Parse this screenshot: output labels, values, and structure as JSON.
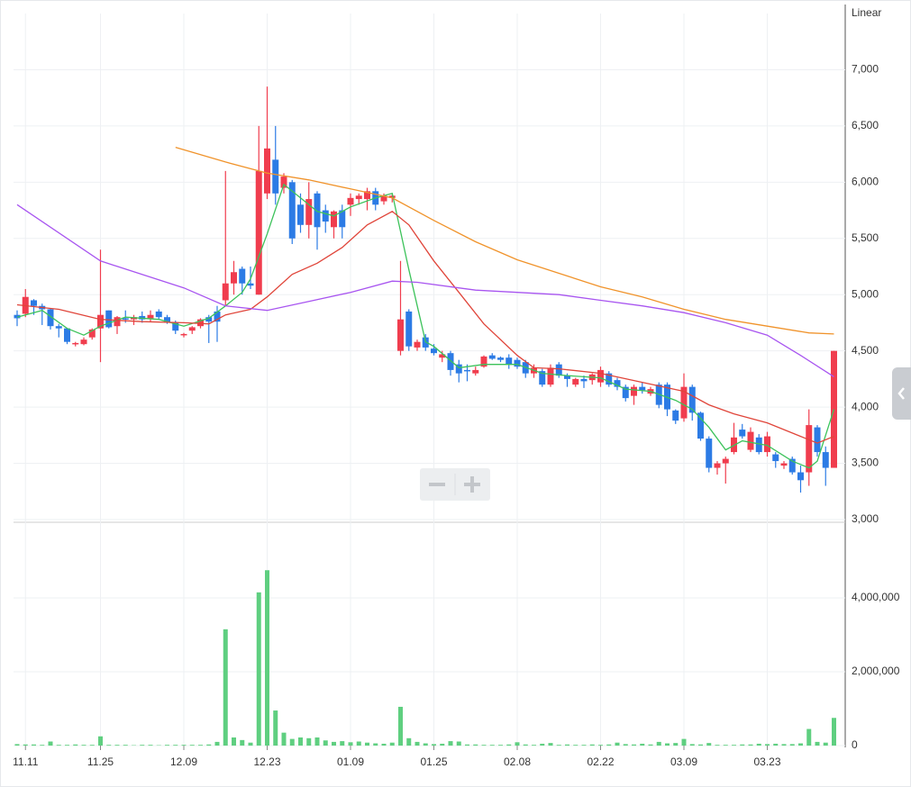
{
  "chart_data": {
    "type": "candlestick",
    "scale_label": "Linear",
    "categories": [
      null,
      "11.11",
      null,
      null,
      null,
      null,
      null,
      null,
      null,
      null,
      "11.25",
      null,
      null,
      null,
      null,
      null,
      null,
      null,
      null,
      null,
      "12.09",
      null,
      null,
      null,
      null,
      null,
      null,
      null,
      null,
      null,
      "12.23",
      null,
      null,
      null,
      null,
      null,
      null,
      null,
      null,
      null,
      "01.09",
      null,
      null,
      null,
      null,
      null,
      null,
      null,
      null,
      null,
      "01.25",
      null,
      null,
      null,
      null,
      null,
      null,
      null,
      null,
      null,
      "02.08",
      null,
      null,
      null,
      null,
      null,
      null,
      null,
      null,
      null,
      "02.22",
      null,
      null,
      null,
      null,
      null,
      null,
      null,
      null,
      null,
      "03.09",
      null,
      null,
      null,
      null,
      null,
      null,
      null,
      null,
      null,
      "03.23",
      null,
      null,
      null,
      null,
      null,
      null,
      null,
      null
    ],
    "open": [
      4820,
      4830,
      4950,
      4900,
      4870,
      4720,
      4700,
      4560,
      4560,
      4620,
      4700,
      4860,
      4720,
      4790,
      4780,
      4810,
      4790,
      4850,
      4800,
      4750,
      4640,
      4680,
      4720,
      4800,
      4850,
      4950,
      5100,
      5230,
      5100,
      5000,
      5900,
      6200,
      5950,
      6000,
      5800,
      5620,
      5900,
      5750,
      5600,
      5750,
      5800,
      5850,
      5850,
      5920,
      5830,
      5860,
      4500,
      4850,
      4530,
      4620,
      4520,
      4440,
      4480,
      4380,
      4330,
      4300,
      4360,
      4460,
      4440,
      4440,
      4420,
      4400,
      4300,
      4320,
      4200,
      4380,
      4280,
      4200,
      4250,
      4240,
      4220,
      4300,
      4240,
      4180,
      4100,
      4180,
      4120,
      4200,
      4200,
      3970,
      3900,
      4180,
      3950,
      3720,
      3460,
      3500,
      3600,
      3800,
      3620,
      3730,
      3600,
      3580,
      3480,
      3540,
      3420,
      3420,
      3820,
      3600,
      3460
    ],
    "high": [
      4860,
      5050,
      4960,
      4920,
      4880,
      4740,
      4700,
      4580,
      4620,
      4700,
      5400,
      4860,
      4810,
      4860,
      4820,
      4850,
      4860,
      4870,
      4820,
      4770,
      4660,
      4720,
      4790,
      4820,
      4900,
      6100,
      5300,
      5250,
      5250,
      6500,
      6850,
      6500,
      6080,
      6020,
      5900,
      6000,
      5920,
      5800,
      5750,
      5800,
      5900,
      5900,
      5950,
      5950,
      5900,
      5900,
      5300,
      4870,
      4600,
      4650,
      4560,
      4500,
      4500,
      4420,
      4380,
      4360,
      4460,
      4480,
      4450,
      4470,
      4440,
      4420,
      4380,
      4340,
      4380,
      4400,
      4300,
      4260,
      4280,
      4300,
      4360,
      4320,
      4260,
      4200,
      4200,
      4220,
      4180,
      4220,
      4220,
      3980,
      4300,
      4200,
      3960,
      3740,
      3520,
      3560,
      3860,
      3850,
      3820,
      3760,
      3780,
      3600,
      3520,
      3560,
      3480,
      3980,
      3840,
      3650,
      4500
    ],
    "low": [
      4720,
      4800,
      4820,
      4730,
      4690,
      4620,
      4560,
      4540,
      4550,
      4600,
      4400,
      4700,
      4650,
      4750,
      4730,
      4750,
      4760,
      4780,
      4740,
      4650,
      4620,
      4650,
      4700,
      4570,
      4580,
      4900,
      5000,
      5000,
      5050,
      5000,
      5850,
      5800,
      5900,
      5450,
      5550,
      5500,
      5400,
      5550,
      5500,
      5500,
      5700,
      5800,
      5750,
      5750,
      5800,
      5820,
      4460,
      4500,
      4500,
      4500,
      4460,
      4400,
      4280,
      4220,
      4230,
      4280,
      4350,
      4420,
      4400,
      4340,
      4340,
      4260,
      4260,
      4180,
      4180,
      4260,
      4180,
      4180,
      4170,
      4200,
      4180,
      4180,
      4150,
      4050,
      4020,
      4120,
      4100,
      3990,
      3920,
      3850,
      3870,
      3880,
      3700,
      3420,
      3400,
      3320,
      3580,
      3720,
      3600,
      3580,
      3560,
      3460,
      3450,
      3400,
      3240,
      3300,
      3560,
      3300,
      3460
    ],
    "close": [
      4790,
      4980,
      4900,
      4870,
      4720,
      4700,
      4580,
      4570,
      4600,
      4690,
      4820,
      4710,
      4800,
      4780,
      4800,
      4780,
      4820,
      4800,
      4750,
      4680,
      4650,
      4710,
      4780,
      4760,
      4760,
      5100,
      5200,
      5100,
      5080,
      6100,
      6300,
      5900,
      6050,
      5500,
      5620,
      5850,
      5600,
      5650,
      5740,
      5600,
      5860,
      5880,
      5920,
      5800,
      5880,
      5880,
      4780,
      4540,
      4580,
      4530,
      4480,
      4470,
      4330,
      4300,
      4320,
      4330,
      4450,
      4430,
      4420,
      4380,
      4360,
      4300,
      4350,
      4200,
      4350,
      4280,
      4250,
      4250,
      4230,
      4290,
      4330,
      4200,
      4180,
      4080,
      4180,
      4150,
      4160,
      4020,
      3980,
      3880,
      4180,
      3950,
      3720,
      3460,
      3500,
      3540,
      3730,
      3740,
      3780,
      3600,
      3740,
      3520,
      3500,
      3420,
      3350,
      3840,
      3600,
      3460,
      4500
    ],
    "volume": [
      40000,
      30000,
      30000,
      20000,
      110000,
      20000,
      20000,
      30000,
      20000,
      20000,
      250000,
      20000,
      20000,
      20000,
      10000,
      20000,
      20000,
      10000,
      20000,
      20000,
      20000,
      20000,
      20000,
      30000,
      100000,
      3150000,
      220000,
      150000,
      80000,
      4150000,
      4750000,
      950000,
      350000,
      180000,
      220000,
      200000,
      220000,
      140000,
      100000,
      120000,
      90000,
      110000,
      80000,
      60000,
      50000,
      80000,
      1050000,
      200000,
      100000,
      60000,
      40000,
      50000,
      120000,
      110000,
      30000,
      30000,
      20000,
      20000,
      20000,
      30000,
      90000,
      30000,
      20000,
      50000,
      70000,
      20000,
      30000,
      20000,
      20000,
      30000,
      20000,
      30000,
      80000,
      40000,
      30000,
      50000,
      30000,
      100000,
      60000,
      70000,
      180000,
      40000,
      30000,
      70000,
      20000,
      20000,
      20000,
      30000,
      30000,
      50000,
      40000,
      50000,
      40000,
      40000,
      60000,
      450000,
      100000,
      80000,
      750000
    ],
    "up_color": "#f03d4e",
    "down_color": "#2c7be5",
    "volume_color": "#5fcf80",
    "series": [
      {
        "color": "#3cc25a",
        "x": [
          0,
          3,
          6,
          8,
          10,
          13,
          17,
          20,
          23,
          25,
          27,
          28,
          30,
          32,
          34,
          36,
          38,
          40,
          43,
          45,
          47,
          49,
          50,
          53,
          56,
          60,
          63,
          66,
          70,
          73,
          76,
          79,
          81,
          83,
          85,
          87,
          90,
          93,
          95,
          96,
          98
        ],
        "values": [
          4800,
          4860,
          4700,
          4640,
          4720,
          4800,
          4780,
          4720,
          4790,
          4900,
          5020,
          5140,
          5540,
          5980,
          5860,
          5740,
          5700,
          5780,
          5860,
          5900,
          5220,
          4580,
          4540,
          4350,
          4380,
          4380,
          4300,
          4280,
          4260,
          4160,
          4140,
          4060,
          3980,
          3820,
          3620,
          3700,
          3660,
          3520,
          3460,
          3520,
          3980
        ]
      },
      {
        "color": "#e0453a",
        "x": [
          0,
          5,
          10,
          15,
          20,
          23,
          25,
          28,
          30,
          33,
          36,
          39,
          42,
          45,
          47,
          50,
          53,
          56,
          60,
          62,
          65,
          70,
          75,
          80,
          83,
          86,
          90,
          94,
          96,
          98
        ],
        "values": [
          4910,
          4870,
          4780,
          4760,
          4750,
          4740,
          4820,
          4870,
          4980,
          5180,
          5280,
          5420,
          5620,
          5740,
          5620,
          5300,
          5020,
          4740,
          4460,
          4350,
          4340,
          4300,
          4220,
          4140,
          4020,
          3940,
          3860,
          3740,
          3680,
          3740
        ]
      },
      {
        "color": "#a855f0",
        "x": [
          0,
          10,
          20,
          25,
          30,
          35,
          40,
          45,
          48,
          55,
          60,
          65,
          70,
          75,
          80,
          85,
          90,
          94,
          98
        ],
        "values": [
          5800,
          5300,
          5060,
          4900,
          4860,
          4940,
          5020,
          5120,
          5110,
          5040,
          5020,
          5000,
          4950,
          4900,
          4840,
          4750,
          4640,
          4460,
          4270
        ]
      },
      {
        "color": "#f0932b",
        "x": [
          19,
          25,
          30,
          35,
          40,
          45,
          50,
          55,
          60,
          65,
          70,
          75,
          80,
          85,
          90,
          95,
          98
        ],
        "values": [
          6310,
          6180,
          6080,
          6020,
          5940,
          5860,
          5660,
          5470,
          5310,
          5190,
          5070,
          4980,
          4870,
          4780,
          4720,
          4660,
          4650
        ]
      }
    ],
    "ylim": [
      3000,
      7500
    ],
    "yticks": [
      {
        "value": 3000,
        "label": "3,000"
      },
      {
        "value": 3500,
        "label": "3,500"
      },
      {
        "value": 4000,
        "label": "4,000"
      },
      {
        "value": 4500,
        "label": "4,500"
      },
      {
        "value": 5000,
        "label": "5,000"
      },
      {
        "value": 5500,
        "label": "5,500"
      },
      {
        "value": 6000,
        "label": "6,000"
      },
      {
        "value": 6500,
        "label": "6,500"
      },
      {
        "value": 7000,
        "label": "7,000"
      }
    ],
    "volume_ylim": [
      0,
      6000000
    ],
    "volume_yticks": [
      0,
      {
        "value": 2000000,
        "label": "2,000,000"
      },
      {
        "value": 4000000,
        "label": "4,000,000"
      }
    ]
  }
}
